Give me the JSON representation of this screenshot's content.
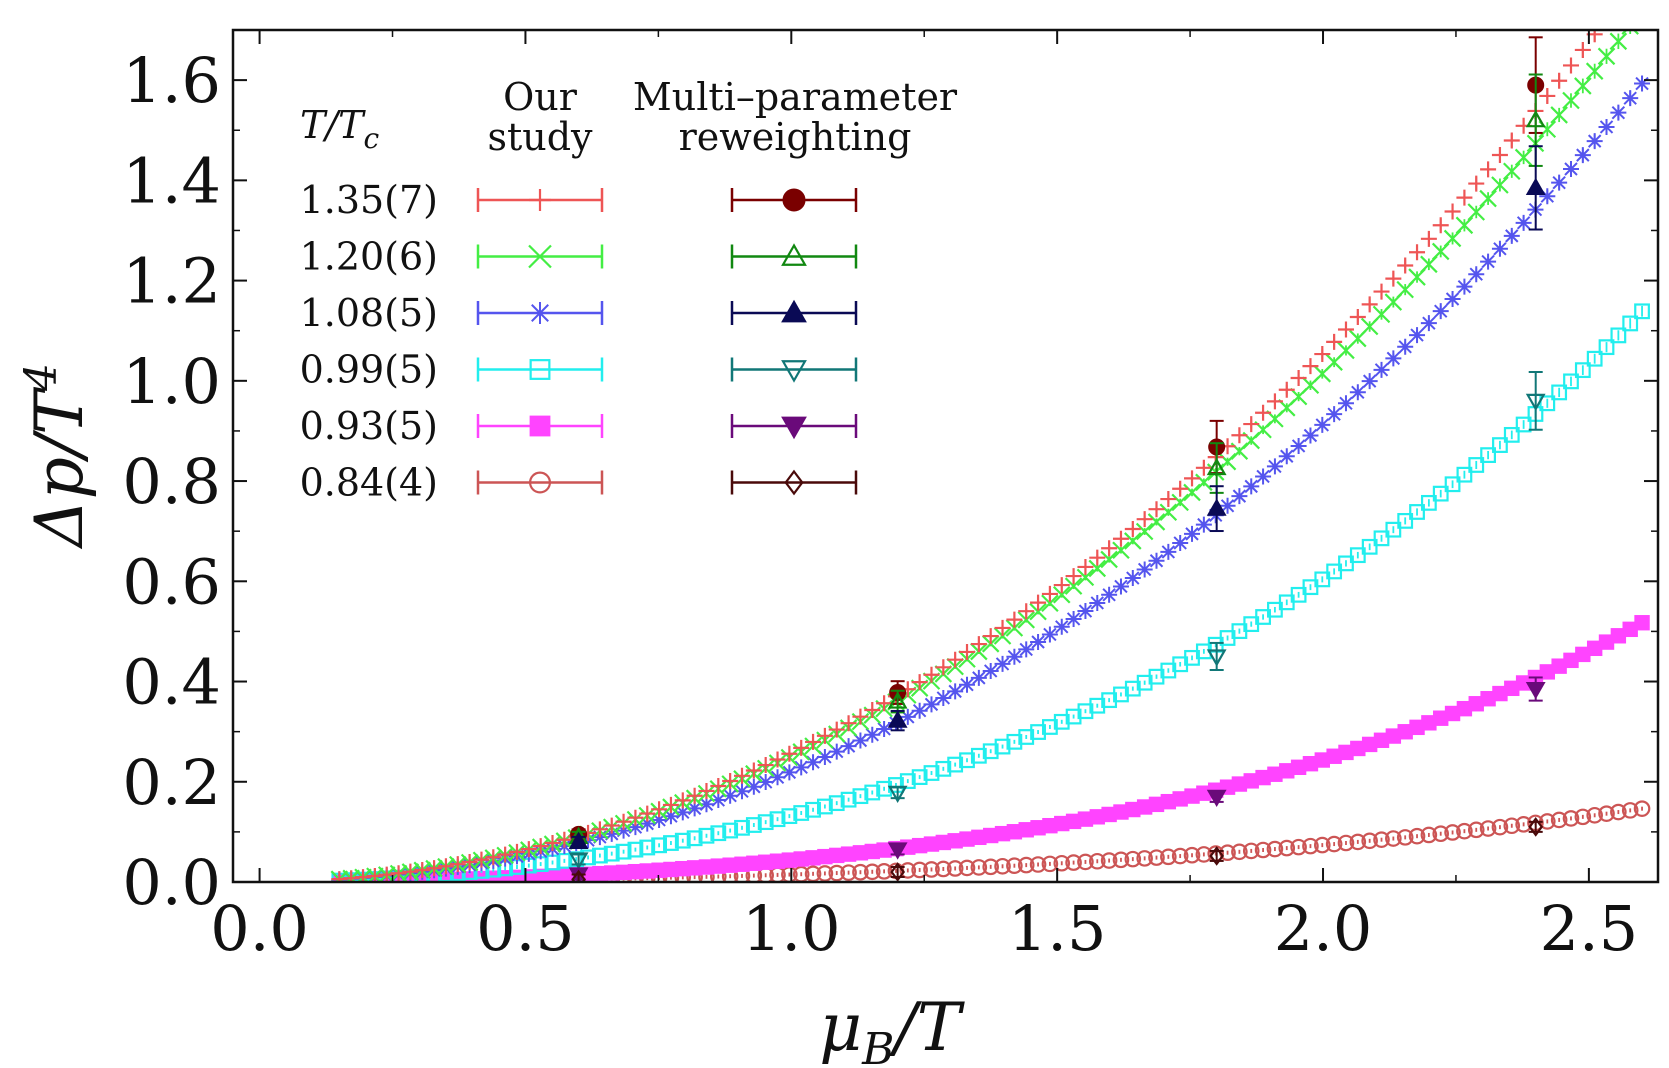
{
  "chart_data": {
    "type": "scatter",
    "xlabel_main": "μ",
    "xlabel_sub": "B",
    "xlabel_rest": "/T",
    "ylabel_main": "Δp/T",
    "ylabel_sup": "4",
    "xlim": [
      -0.05,
      2.63
    ],
    "ylim": [
      0.0,
      1.7
    ],
    "xticks": [
      0.0,
      0.5,
      1.0,
      1.5,
      2.0,
      2.5
    ],
    "xtick_labels": [
      "0.0",
      "0.5",
      "1.0",
      "1.5",
      "2.0",
      "2.5"
    ],
    "yticks": [
      0.0,
      0.2,
      0.4,
      0.6,
      0.8,
      1.0,
      1.2,
      1.4,
      1.6
    ],
    "ytick_labels": [
      "0.0",
      "0.2",
      "0.4",
      "0.6",
      "0.8",
      "1.0",
      "1.2",
      "1.4",
      "1.6"
    ],
    "legend": {
      "col_header_temp_main": "T/T",
      "col_header_temp_sub": "c",
      "col_header_study_line1": "Our",
      "col_header_study_line2": "study",
      "col_header_mpr_line1": "Multi–parameter",
      "col_header_mpr_line2": "reweighting"
    },
    "series": [
      {
        "temp": "1.35(7)",
        "curve_color": "#ee5555",
        "curve_marker": "plus",
        "mpr_color": "#7a0000",
        "mpr_marker": "circle-filled",
        "coef_a": 0.2558,
        "coef_b": 0.00198,
        "x_start": 0.15,
        "x_end": 2.6,
        "mpr_points": [
          {
            "x": 0.6,
            "y": 0.095
          },
          {
            "x": 1.2,
            "y": 0.378
          },
          {
            "x": 1.8,
            "y": 0.868
          },
          {
            "x": 2.4,
            "y": 1.59
          }
        ]
      },
      {
        "temp": "1.20(6)",
        "curve_color": "#44ee44",
        "curve_marker": "x",
        "mpr_color": "#118811",
        "mpr_marker": "triangle-up-open",
        "coef_a": 0.2491,
        "coef_b": 0.00119,
        "x_start": 0.15,
        "x_end": 2.6,
        "mpr_points": [
          {
            "x": 0.6,
            "y": 0.09
          },
          {
            "x": 1.2,
            "y": 0.36
          },
          {
            "x": 1.8,
            "y": 0.826
          },
          {
            "x": 2.4,
            "y": 1.52
          }
        ]
      },
      {
        "temp": "1.08(5)",
        "curve_color": "#5555ee",
        "curve_marker": "star",
        "mpr_color": "#0a0a55",
        "mpr_marker": "triangle-up-filled",
        "coef_a": 0.2177,
        "coef_b": 0.00266,
        "x_start": 0.15,
        "x_end": 2.6,
        "mpr_points": [
          {
            "x": 0.6,
            "y": 0.08
          },
          {
            "x": 1.2,
            "y": 0.322
          },
          {
            "x": 1.8,
            "y": 0.745
          },
          {
            "x": 2.4,
            "y": 1.385
          }
        ]
      },
      {
        "temp": "0.99(5)",
        "curve_color": "#22eeee",
        "curve_marker": "square-open",
        "mpr_color": "#117777",
        "mpr_marker": "triangle-down-open",
        "coef_a": 0.1262,
        "coef_b": 0.00625,
        "x_start": 0.15,
        "x_end": 2.6,
        "mpr_points": [
          {
            "x": 0.6,
            "y": 0.045
          },
          {
            "x": 1.2,
            "y": 0.178
          },
          {
            "x": 1.8,
            "y": 0.45
          },
          {
            "x": 2.4,
            "y": 0.96
          }
        ]
      },
      {
        "temp": "0.93(5)",
        "curve_color": "#ff44ff",
        "curve_marker": "square-filled",
        "mpr_color": "#6a0a7a",
        "mpr_marker": "triangle-down-filled",
        "coef_a": 0.0384,
        "coef_b": 0.00564,
        "x_start": 0.15,
        "x_end": 2.6,
        "mpr_points": [
          {
            "x": 0.6,
            "y": 0.015
          },
          {
            "x": 1.2,
            "y": 0.065
          },
          {
            "x": 1.8,
            "y": 0.17
          },
          {
            "x": 2.4,
            "y": 0.385
          }
        ]
      },
      {
        "temp": "0.84(4)",
        "curve_color": "#cc5555",
        "curve_marker": "circle-open",
        "mpr_color": "#4a0a0a",
        "mpr_marker": "diamond-open",
        "coef_a": 0.0138,
        "coef_b": 0.00116,
        "x_start": 0.15,
        "x_end": 2.6,
        "mpr_points": [
          {
            "x": 0.6,
            "y": 0.005
          },
          {
            "x": 1.2,
            "y": 0.02
          },
          {
            "x": 1.8,
            "y": 0.052
          },
          {
            "x": 2.4,
            "y": 0.11
          }
        ]
      }
    ]
  }
}
